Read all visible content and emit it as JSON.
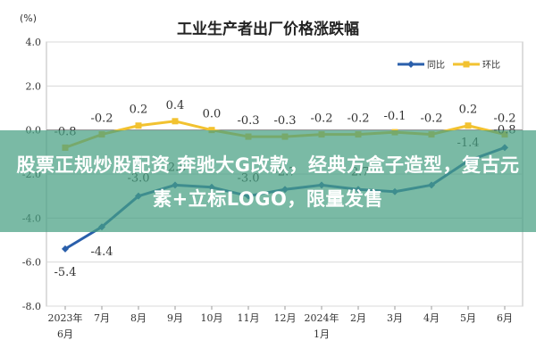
{
  "chart_data": {
    "type": "line",
    "title": "工业生产者出厂价格涨跌幅",
    "ylabel": "(%)",
    "ylim": [
      -8.0,
      4.0
    ],
    "yticks": [
      "4.0",
      "2.0",
      "0.0",
      "-2.0",
      "-4.0",
      "-6.0",
      "-8.0"
    ],
    "categories": [
      {
        "line1": "2023年",
        "line2": "6月"
      },
      {
        "line1": "7月",
        "line2": ""
      },
      {
        "line1": "8月",
        "line2": ""
      },
      {
        "line1": "9月",
        "line2": ""
      },
      {
        "line1": "10月",
        "line2": ""
      },
      {
        "line1": "11月",
        "line2": ""
      },
      {
        "line1": "12月",
        "line2": ""
      },
      {
        "line1": "2024年",
        "line2": "1月"
      },
      {
        "line1": "2月",
        "line2": ""
      },
      {
        "line1": "3月",
        "line2": ""
      },
      {
        "line1": "4月",
        "line2": ""
      },
      {
        "line1": "5月",
        "line2": ""
      },
      {
        "line1": "6月",
        "line2": ""
      }
    ],
    "series": [
      {
        "name": "同比",
        "color": "#2a5fab",
        "values": [
          -5.4,
          -4.4,
          -3.0,
          -2.5,
          -2.6,
          -3.0,
          -2.7,
          -2.5,
          -2.7,
          -2.8,
          -2.5,
          -1.4,
          -0.8
        ],
        "labels": [
          "-5.4",
          "-4.4",
          "-3.0",
          "-2.5",
          "",
          "-3.0",
          "-2.7",
          "",
          "-2.7",
          "",
          "",
          "-1.4",
          "-0.8"
        ]
      },
      {
        "name": "环比",
        "color": "#f2c230",
        "values": [
          -0.8,
          -0.2,
          0.2,
          0.4,
          0.0,
          -0.3,
          -0.3,
          -0.2,
          -0.2,
          -0.1,
          -0.2,
          0.2,
          -0.2
        ],
        "labels": [
          "-0.8",
          "-0.2",
          "0.2",
          "0.4",
          "0.0",
          "-0.3",
          "-0.3",
          "-0.2",
          "-0.2",
          "-0.1",
          "-0.2",
          "0.2",
          "-0.2"
        ]
      }
    ],
    "legend_position": "top-right",
    "grid": "horizontal"
  },
  "overlay": {
    "banner_text": "股票正规炒股配资 奔驰大G改款，经典方盒子造型，复古元素+立标LOGO，限量发售",
    "banner_color": "#46a082"
  }
}
